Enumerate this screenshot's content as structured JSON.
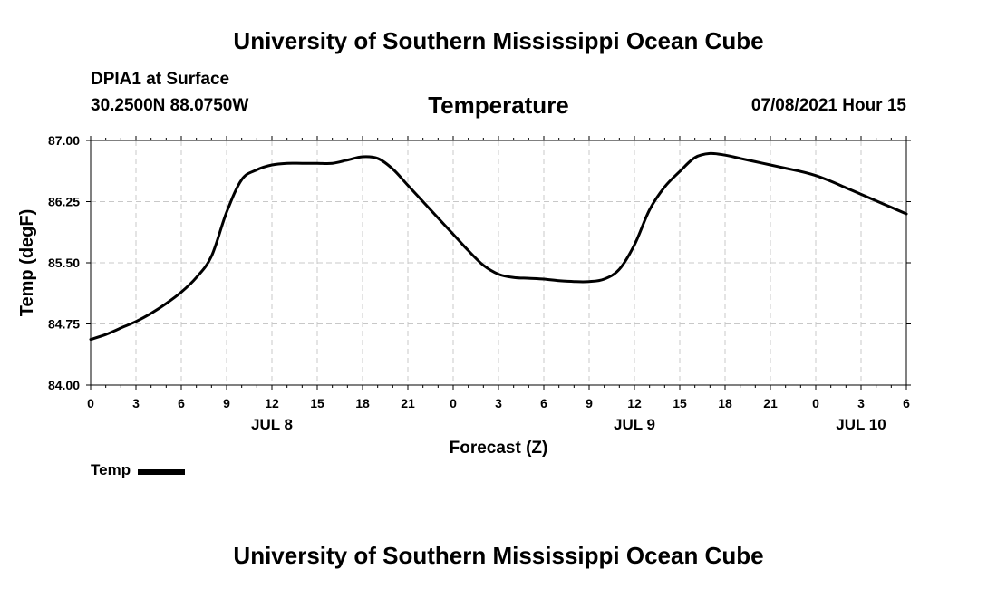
{
  "header": {
    "title_top": "University of Southern Mississippi Ocean Cube",
    "station": "DPIA1 at Surface",
    "coords": "30.2500N  88.0750W",
    "datetime": "07/08/2021 Hour 15",
    "title_bottom": "University of Southern Mississippi Ocean Cube"
  },
  "legend": {
    "label": "Temp"
  },
  "chart_data": {
    "type": "line",
    "title": "Temperature",
    "xlabel": "Forecast (Z)",
    "ylabel": "Temp (degF)",
    "ylim": [
      84.0,
      87.0
    ],
    "yticks": [
      "84.00",
      "84.75",
      "85.50",
      "86.25",
      "87.00"
    ],
    "xlim": [
      0,
      54
    ],
    "xtick_labels": [
      "0",
      "3",
      "6",
      "9",
      "12",
      "15",
      "18",
      "21",
      "0",
      "3",
      "6",
      "9",
      "12",
      "15",
      "18",
      "21",
      "0",
      "3",
      "6"
    ],
    "date_labels": [
      {
        "hour": 12,
        "label": "JUL 8"
      },
      {
        "hour": 36,
        "label": "JUL 9"
      },
      {
        "hour": 51,
        "label": "JUL 10"
      }
    ],
    "grid": true,
    "series": [
      {
        "name": "Temp",
        "x": [
          0,
          1,
          2,
          3,
          4,
          5,
          6,
          7,
          8,
          9,
          10,
          11,
          12,
          13,
          14,
          15,
          16,
          17,
          18,
          19,
          20,
          21,
          22,
          23,
          24,
          25,
          26,
          27,
          28,
          29,
          30,
          31,
          32,
          33,
          34,
          35,
          36,
          37,
          38,
          39,
          40,
          41,
          42,
          43,
          44,
          45,
          46,
          47,
          48,
          49,
          50,
          51,
          52,
          53,
          54
        ],
        "y": [
          84.56,
          84.62,
          84.7,
          84.78,
          84.88,
          85.0,
          85.14,
          85.32,
          85.58,
          86.12,
          86.52,
          86.64,
          86.7,
          86.72,
          86.72,
          86.72,
          86.72,
          86.76,
          86.8,
          86.78,
          86.65,
          86.45,
          86.25,
          86.05,
          85.85,
          85.65,
          85.47,
          85.36,
          85.32,
          85.31,
          85.3,
          85.28,
          85.27,
          85.27,
          85.3,
          85.42,
          85.72,
          86.15,
          86.43,
          86.62,
          86.79,
          86.84,
          86.82,
          86.78,
          86.74,
          86.7,
          86.66,
          86.62,
          86.57,
          86.5,
          86.42,
          86.34,
          86.26,
          86.18,
          86.1
        ]
      }
    ]
  }
}
